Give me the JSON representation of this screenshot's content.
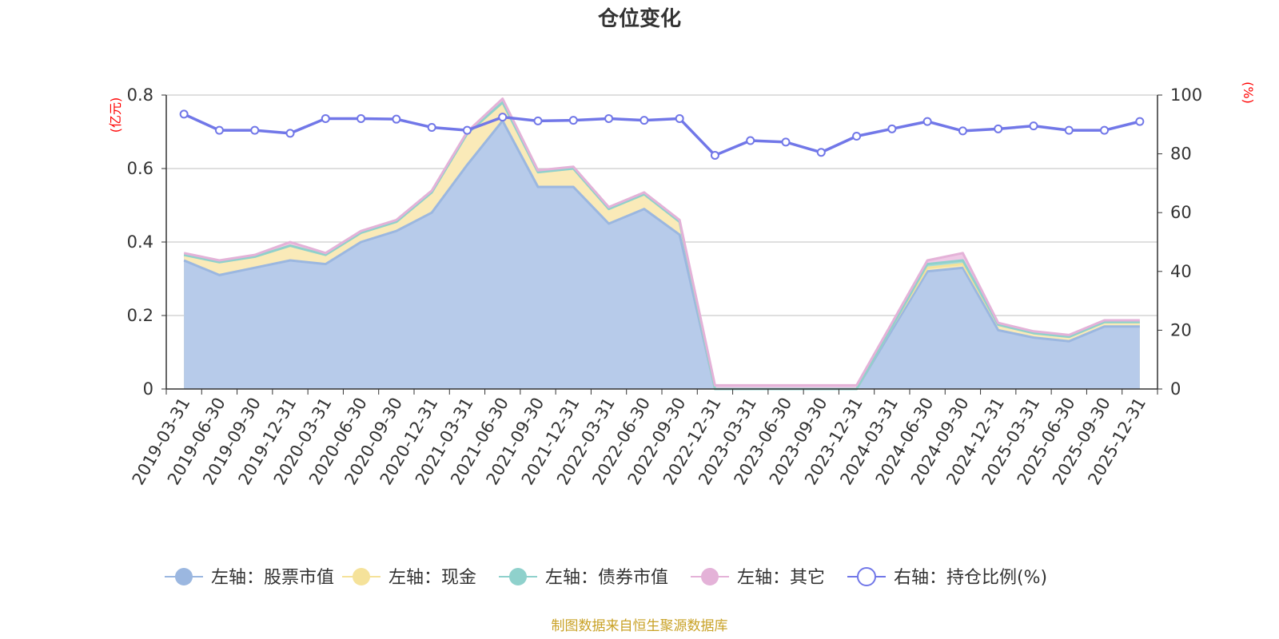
{
  "chart_data": {
    "type": "area",
    "title": "仓位变化",
    "left_unit": "(亿元)",
    "right_unit": "(%)",
    "categories": [
      "2019-03-31",
      "2019-06-30",
      "2019-09-30",
      "2019-12-31",
      "2020-03-31",
      "2020-06-30",
      "2020-09-30",
      "2020-12-31",
      "2021-03-31",
      "2021-06-30",
      "2021-09-30",
      "2021-12-31",
      "2022-03-31",
      "2022-06-30",
      "2022-09-30",
      "2022-12-31",
      "2023-03-31",
      "2023-06-30",
      "2023-09-30",
      "2023-12-31",
      "2024-03-31",
      "2024-06-30",
      "2024-09-30",
      "2024-12-31",
      "2025-03-31",
      "2025-06-30",
      "2025-09-30",
      "2025-12-31"
    ],
    "y_left": {
      "min": 0,
      "max": 0.8,
      "ticks": [
        "0",
        "0.2",
        "0.4",
        "0.6",
        "0.8"
      ]
    },
    "y_right": {
      "min": 0,
      "max": 100,
      "ticks": [
        "0",
        "20",
        "40",
        "60",
        "80",
        "100"
      ]
    },
    "stacked_series": [
      {
        "name": "左轴：股票市值",
        "color": "#9bb7e0",
        "fill": "#b7cbea",
        "values": [
          0.35,
          0.31,
          0.33,
          0.35,
          0.34,
          0.4,
          0.43,
          0.48,
          0.61,
          0.73,
          0.55,
          0.55,
          0.45,
          0.49,
          0.42,
          0.0,
          0.0,
          0.0,
          0.0,
          0.0,
          0.16,
          0.32,
          0.33,
          0.16,
          0.14,
          0.13,
          0.17,
          0.17
        ]
      },
      {
        "name": "左轴：现金",
        "color": "#f5e29a",
        "fill": "#faeab8",
        "values": [
          0.015,
          0.035,
          0.03,
          0.04,
          0.025,
          0.025,
          0.025,
          0.055,
          0.085,
          0.05,
          0.04,
          0.05,
          0.04,
          0.04,
          0.035,
          0.0,
          0.0,
          0.0,
          0.0,
          0.0,
          0.01,
          0.01,
          0.01,
          0.015,
          0.012,
          0.012,
          0.012,
          0.012
        ]
      },
      {
        "name": "左轴：债券市值",
        "color": "#8fd1cc",
        "fill": "#a8dcd8",
        "values": [
          0,
          0,
          0,
          0,
          0,
          0,
          0,
          0,
          0,
          0,
          0,
          0,
          0,
          0,
          0,
          0,
          0,
          0,
          0,
          0,
          0,
          0.01,
          0.01,
          0,
          0,
          0,
          0,
          0
        ]
      },
      {
        "name": "左轴：其它",
        "color": "#e4b2d8",
        "fill": "#efc9e6",
        "values": [
          0.005,
          0.005,
          0.005,
          0.01,
          0.005,
          0.005,
          0.005,
          0.005,
          0.005,
          0.01,
          0.005,
          0.005,
          0.005,
          0.005,
          0.005,
          0.01,
          0.01,
          0.01,
          0.01,
          0.01,
          0.01,
          0.01,
          0.02,
          0.005,
          0.005,
          0.005,
          0.005,
          0.005
        ]
      }
    ],
    "line_series": {
      "name": "右轴：持仓比例(%)",
      "color": "#7177e8",
      "values": [
        93.5,
        88.0,
        88.0,
        87.0,
        92.0,
        92.0,
        91.8,
        89.0,
        88.0,
        92.5,
        91.2,
        91.4,
        92.0,
        91.4,
        92.0,
        79.5,
        84.5,
        84.0,
        80.5,
        86.0,
        88.5,
        91.0,
        87.8,
        88.5,
        89.5,
        88.0,
        88.0,
        91.0
      ]
    },
    "grid": true,
    "legend_position": "bottom-center"
  },
  "source_note": "制图数据来自恒生聚源数据库"
}
